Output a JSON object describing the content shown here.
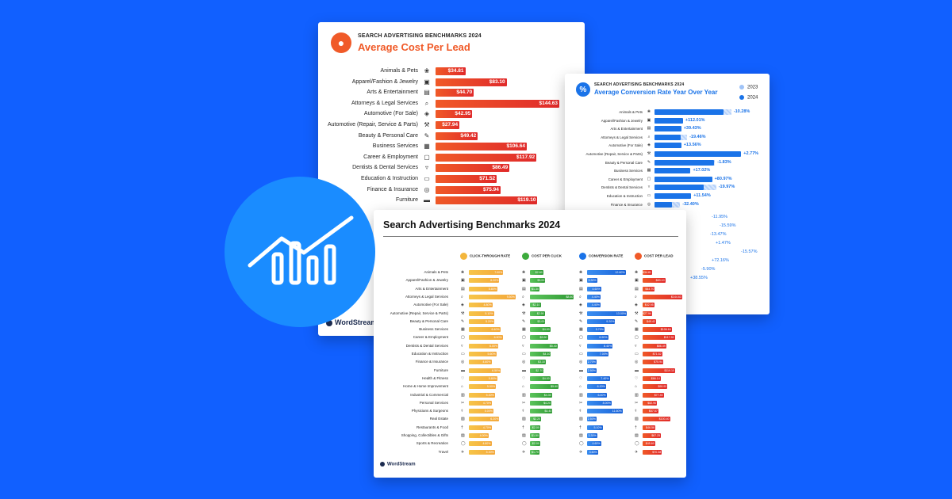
{
  "colors": {
    "background": "#1160ff",
    "orange": "#f05a28",
    "red": "#e02a2a",
    "blue": "#1a73e8",
    "green": "#3cab3c",
    "yellow": "#f3b63c",
    "circle": "#1a8cff"
  },
  "trend_icon": "chart-trend-up-icon",
  "cpl_card": {
    "kicker": "SEARCH ADVERTISING BENCHMARKS 2024",
    "title": "Average Cost Per Lead",
    "brand": "WordStream"
  },
  "conv_card": {
    "kicker": "SEARCH ADVERTISING BENCHMARKS 2024",
    "title": "Average Conversion Rate Year Over Year",
    "legend": [
      "2023",
      "2024"
    ]
  },
  "main_card": {
    "title": "Search Advertising Benchmarks 2024",
    "brand": "WordStream",
    "columns": [
      "CLICK-THROUGH RATE",
      "COST PER CLICK",
      "CONVERSION RATE",
      "COST PER LEAD"
    ]
  },
  "chart_data": [
    {
      "type": "bar",
      "title": "Average Cost Per Lead",
      "categories": [
        "Animals & Pets",
        "Apparel/Fashion & Jewelry",
        "Arts & Entertainment",
        "Attorneys & Legal Services",
        "Automotive (For Sale)",
        "Automotive (Repair, Service & Parts)",
        "Beauty & Personal Care",
        "Business Services",
        "Career & Employment",
        "Dentists & Dental Services",
        "Education & Instruction",
        "Finance & Insurance",
        "Furniture"
      ],
      "icons": [
        "paw-icon",
        "shirt-icon",
        "theater-icon",
        "magnifier-icon",
        "car-tag-icon",
        "wrench-icon",
        "brush-icon",
        "newspaper-icon",
        "briefcase-icon",
        "tooth-icon",
        "book-icon",
        "coins-icon",
        "sofa-icon"
      ],
      "values": [
        34.81,
        83.1,
        44.7,
        144.63,
        42.95,
        27.94,
        49.42,
        106.64,
        117.92,
        86.49,
        71.52,
        75.94,
        119.1
      ],
      "labels": [
        "$34.81",
        "$83.10",
        "$44.70",
        "$144.63",
        "$42.95",
        "$27.94",
        "$49.42",
        "$106.64",
        "$117.92",
        "$86.49",
        "$71.52",
        "$75.94",
        "$119.10"
      ]
    },
    {
      "type": "bar",
      "title": "Average Conversion Rate Year Over Year",
      "categories": [
        "Animals & Pets",
        "Apparel/Fashion & Jewelry",
        "Arts & Entertainment",
        "Attorneys & Legal Services",
        "Automotive (For Sale)",
        "Automotive (Repair, Service & Parts)",
        "Beauty & Personal Care",
        "Business Services",
        "Career & Employment",
        "Dentists & Dental Services",
        "Education & Instruction",
        "Finance & Insurance"
      ],
      "icons": [
        "paw-icon",
        "shirt-icon",
        "theater-icon",
        "magnifier-icon",
        "car-tag-icon",
        "wrench-icon",
        "brush-icon",
        "newspaper-icon",
        "briefcase-icon",
        "tooth-icon",
        "book-icon",
        "coins-icon"
      ],
      "series": [
        {
          "name": "2023",
          "values": [
            13.2,
            2.3,
            3.3,
            5.6,
            4.1,
            14.5,
            10.4,
            5.3,
            5.5,
            10.6,
            5.6,
            4.4
          ]
        },
        {
          "name": "2024",
          "values": [
            11.8,
            4.9,
            4.6,
            4.5,
            4.6,
            14.9,
            10.2,
            6.2,
            9.9,
            8.5,
            6.3,
            3.0
          ]
        }
      ],
      "changes": [
        "-10.28%",
        "+112.01%",
        "+39.43%",
        "-19.46%",
        "+13.56%",
        "+2.77%",
        "-1.83%",
        "+17.02%",
        "+80.97%",
        "-19.97%",
        "+11.54%",
        "-32.40%"
      ],
      "changes_partial": [
        "-11.95%",
        "-15.59%",
        "-13.47%",
        "+1.47%",
        "-15.57%",
        "+72.16%",
        "-5.90%",
        "+38.55%"
      ]
    },
    {
      "type": "table",
      "title": "Search Advertising Benchmarks 2024",
      "columns": [
        "CLICK-THROUGH RATE",
        "COST PER CLICK",
        "CONVERSION RATE",
        "COST PER LEAD"
      ],
      "categories": [
        "Animals & Pets",
        "Apparel/Fashion & Jewelry",
        "Arts & Entertainment",
        "Attorneys & Legal Services",
        "Automotive (For Sale)",
        "Automotive (Repair, Service & Parts)",
        "Beauty & Personal Care",
        "Business Services",
        "Career & Employment",
        "Dentists & Dental Services",
        "Education & Instruction",
        "Finance & Insurance",
        "Furniture",
        "Health & Fitness",
        "Home & Home Improvement",
        "Industrial & Commercial",
        "Personal Services",
        "Physicians & Surgeons",
        "Real Estate",
        "Restaurants & Food",
        "Shopping, Collectibles & Gifts",
        "Sports & Recreation",
        "Travel"
      ],
      "icons": [
        "paw-icon",
        "shirt-icon",
        "theater-icon",
        "magnifier-icon",
        "car-tag-icon",
        "wrench-icon",
        "brush-icon",
        "newspaper-icon",
        "briefcase-icon",
        "tooth-icon",
        "book-icon",
        "coins-icon",
        "sofa-icon",
        "heart-icon",
        "house-icon",
        "factory-icon",
        "scissors-icon",
        "stethoscope-icon",
        "building-icon",
        "fork-icon",
        "bag-icon",
        "ball-icon",
        "plane-icon"
      ],
      "ctr": [
        7.0,
        6.2,
        5.8,
        9.5,
        4.8,
        5.1,
        5.2,
        6.4,
        6.9,
        6.0,
        5.6,
        4.6,
        6.5,
        5.8,
        5.5,
        5.3,
        4.7,
        5.0,
        6.2,
        4.7,
        4.0,
        4.6,
        5.3
      ],
      "cpc": [
        2.6,
        3.0,
        1.3,
        8.6,
        2.1,
        2.9,
        3.0,
        4.0,
        3.5,
        5.4,
        4.1,
        3.1,
        2.7,
        4.0,
        5.6,
        4.3,
        4.2,
        4.4,
        2.2,
        2.0,
        1.5,
        2.0,
        1.7
      ],
      "cvr": [
        12.6,
        3.3,
        4.6,
        4.4,
        4.4,
        13.0,
        9.2,
        5.7,
        6.9,
        8.4,
        7.0,
        2.7,
        2.9,
        7.4,
        6.2,
        6.4,
        8.0,
        11.6,
        2.5,
        5.1,
        3.3,
        4.6,
        3.6
      ],
      "cpl": [
        34.81,
        83.1,
        44.7,
        144.63,
        42.95,
        27.94,
        49.42,
        106.64,
        117.92,
        86.49,
        71.52,
        75.94,
        119.1,
        66.14,
        90.92,
        77.4,
        52.9,
        57.57,
        100.4,
        46.58,
        67.25,
        45.6,
        70.38
      ]
    }
  ]
}
